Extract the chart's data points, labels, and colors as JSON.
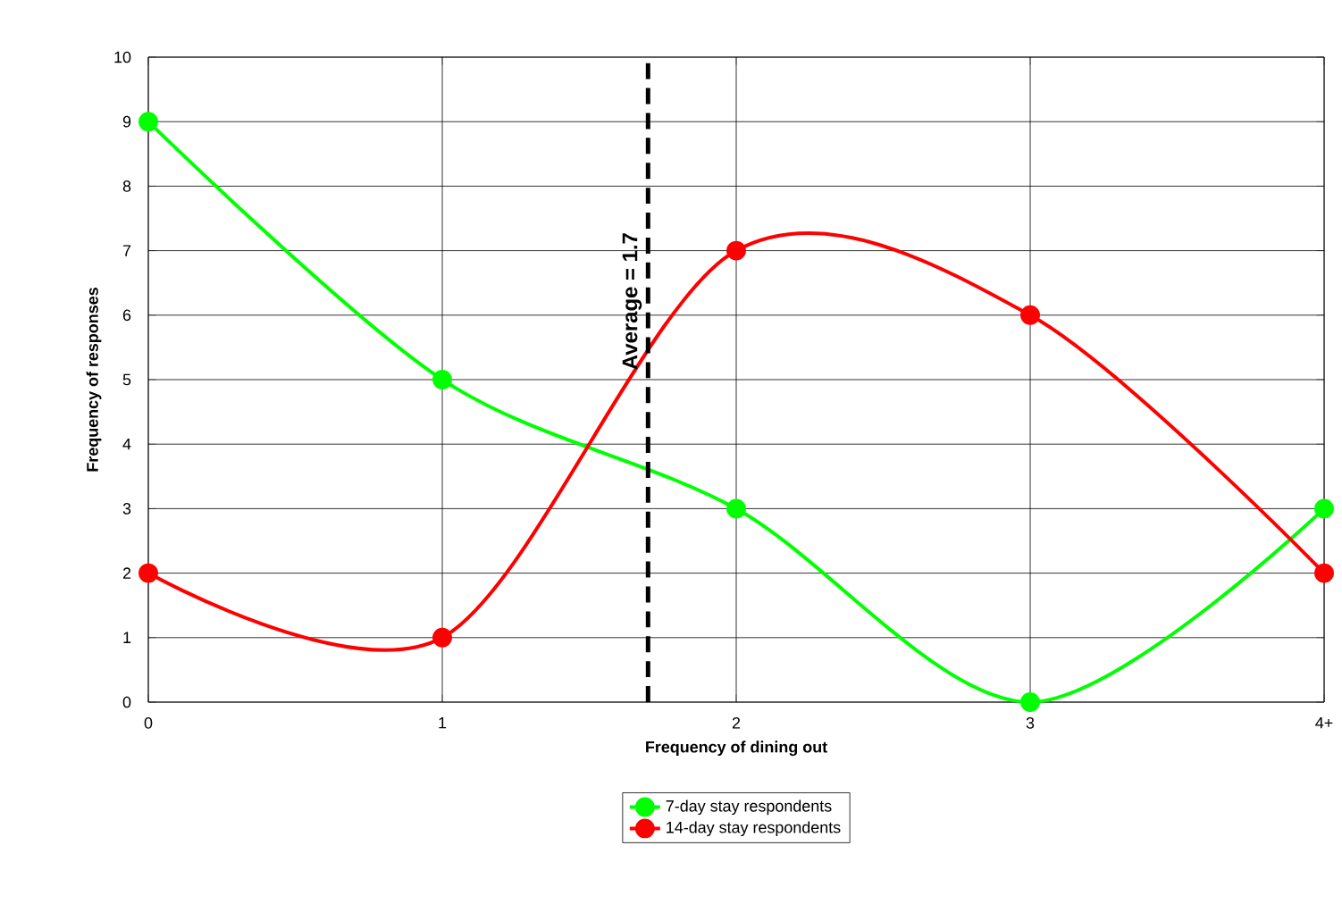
{
  "chart_data": {
    "type": "line",
    "xlabel": "Frequency of dining out",
    "ylabel": "Frequency of responses",
    "x": [
      0,
      1,
      2,
      3,
      4
    ],
    "series": [
      {
        "name": "7-day stay respondents",
        "color": "#00ff00",
        "values": [
          9,
          5,
          3,
          0,
          3
        ]
      },
      {
        "name": "14-day stay respondents",
        "color": "#ff0000",
        "values": [
          2,
          1,
          7,
          6,
          2
        ]
      }
    ],
    "xlim": [
      0,
      4
    ],
    "xticks": [
      0,
      1,
      2,
      3,
      {
        "value": 4,
        "label": "4+"
      }
    ],
    "ylim": [
      0,
      10
    ],
    "yticks": [
      0,
      1,
      2,
      3,
      4,
      5,
      6,
      7,
      8,
      9,
      10
    ],
    "ref_lines": [
      {
        "axis": "x",
        "value": 1.7,
        "label": "Average = 1.7",
        "color": "#000000",
        "line_style": "dashed"
      }
    ],
    "grid": true,
    "legend": "bottom",
    "marker": "circle",
    "line_style": "solid"
  }
}
